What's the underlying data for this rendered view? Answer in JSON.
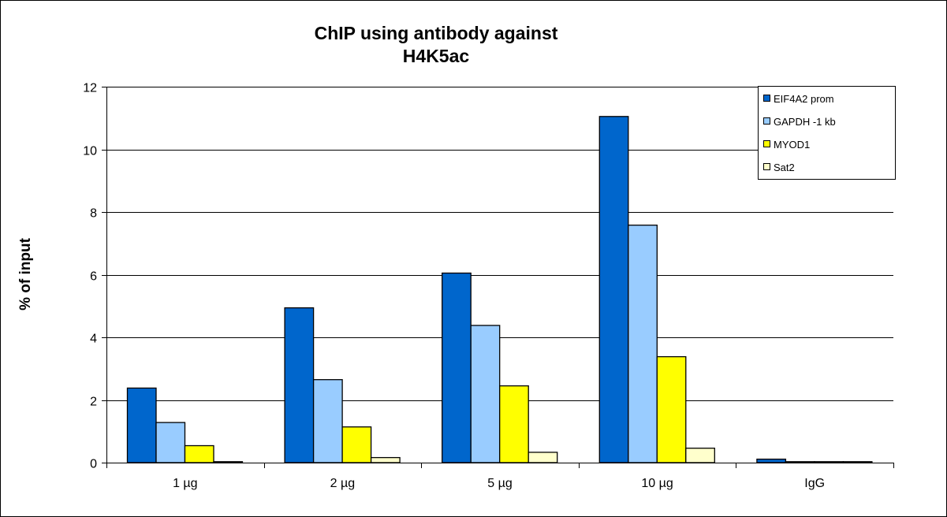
{
  "chart_data": {
    "type": "bar",
    "title": [
      "ChIP using antibody against",
      "H4K5ac"
    ],
    "xlabel": "",
    "ylabel": "% of input",
    "ylim": [
      0,
      12
    ],
    "yticks": [
      0,
      2,
      4,
      6,
      8,
      10,
      12
    ],
    "grid": true,
    "legend_position": "top-right",
    "categories": [
      "1 µg",
      "2 µg",
      "5 µg",
      "10 µg",
      "IgG"
    ],
    "series": [
      {
        "name": "EIF4A2 prom",
        "color": "#0066CC",
        "values": [
          2.38,
          4.94,
          6.05,
          11.05,
          0.11
        ]
      },
      {
        "name": "GAPDH -1 kb",
        "color": "#99CCFF",
        "values": [
          1.28,
          2.65,
          4.38,
          7.58,
          0.03
        ]
      },
      {
        "name": "MYOD1",
        "color": "#FFFF00",
        "values": [
          0.54,
          1.14,
          2.45,
          3.38,
          0.03
        ]
      },
      {
        "name": "Sat2",
        "color": "#FFFFCC",
        "values": [
          0.03,
          0.16,
          0.33,
          0.46,
          0.03
        ]
      }
    ]
  }
}
